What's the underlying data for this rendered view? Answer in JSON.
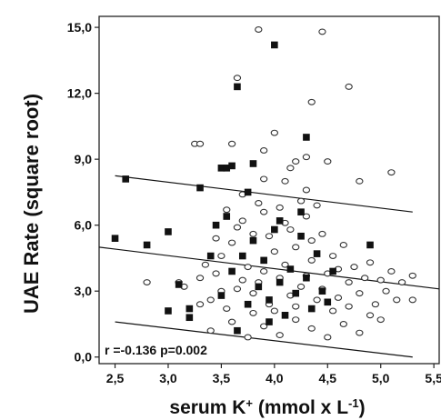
{
  "chart_data": {
    "type": "scatter",
    "title": "",
    "xlabel": "serum K",
    "xlabel_sup_plus": "+",
    "xlabel_unit": " (mmol x L",
    "xlabel_sup_exp": "-1",
    "xlabel_close": ")",
    "ylabel": "UAE Rate (square root)",
    "xlim": [
      2.35,
      5.55
    ],
    "ylim": [
      -0.3,
      15.5
    ],
    "x_ticks": [
      2.5,
      3.0,
      3.5,
      4.0,
      4.5,
      5.0,
      5.5
    ],
    "x_tick_labels": [
      "2,5",
      "3,0",
      "3,5",
      "4,0",
      "4,5",
      "5,0",
      "5,5"
    ],
    "y_ticks": [
      0,
      3,
      6,
      9,
      12,
      15
    ],
    "y_tick_labels": [
      "0,0",
      "3,0",
      "6,0",
      "9,0",
      "12,0",
      "15,0"
    ],
    "grid": false,
    "annotation": "r =-0.136 p=0.002",
    "series": [
      {
        "marker": "open-circle",
        "color": "#333333",
        "points": [
          [
            3.85,
            14.9
          ],
          [
            4.45,
            14.8
          ],
          [
            3.65,
            12.7
          ],
          [
            4.7,
            12.3
          ],
          [
            4.35,
            11.6
          ],
          [
            3.6,
            9.7
          ],
          [
            3.9,
            9.4
          ],
          [
            3.25,
            9.7
          ],
          [
            3.3,
            9.7
          ],
          [
            4.0,
            10.2
          ],
          [
            4.15,
            8.6
          ],
          [
            4.2,
            8.9
          ],
          [
            4.3,
            9.1
          ],
          [
            4.5,
            8.9
          ],
          [
            5.1,
            8.4
          ],
          [
            3.9,
            8.1
          ],
          [
            4.1,
            8.0
          ],
          [
            4.8,
            8.0
          ],
          [
            4.3,
            7.6
          ],
          [
            3.7,
            7.4
          ],
          [
            2.8,
            3.4
          ],
          [
            3.1,
            3.4
          ],
          [
            3.15,
            3.2
          ],
          [
            3.3,
            3.6
          ],
          [
            3.35,
            4.2
          ],
          [
            3.4,
            2.6
          ],
          [
            3.45,
            3.8
          ],
          [
            3.5,
            4.6
          ],
          [
            3.55,
            2.2
          ],
          [
            3.6,
            5.2
          ],
          [
            3.65,
            3.1
          ],
          [
            3.7,
            6.2
          ],
          [
            3.75,
            4.1
          ],
          [
            3.8,
            2.9
          ],
          [
            3.8,
            5.6
          ],
          [
            3.85,
            3.4
          ],
          [
            3.9,
            6.6
          ],
          [
            3.95,
            2.4
          ],
          [
            4.0,
            4.8
          ],
          [
            4.05,
            3.6
          ],
          [
            4.1,
            6.1
          ],
          [
            4.15,
            2.8
          ],
          [
            4.2,
            5.0
          ],
          [
            4.25,
            3.2
          ],
          [
            4.3,
            6.4
          ],
          [
            4.35,
            4.4
          ],
          [
            4.4,
            2.6
          ],
          [
            4.45,
            5.6
          ],
          [
            4.5,
            3.8
          ],
          [
            4.55,
            4.6
          ],
          [
            4.6,
            2.7
          ],
          [
            4.65,
            5.1
          ],
          [
            4.7,
            3.4
          ],
          [
            4.75,
            4.1
          ],
          [
            4.8,
            2.9
          ],
          [
            4.85,
            3.6
          ],
          [
            4.9,
            4.3
          ],
          [
            4.95,
            2.4
          ],
          [
            5.0,
            3.5
          ],
          [
            5.05,
            3.0
          ],
          [
            5.1,
            3.9
          ],
          [
            5.15,
            2.6
          ],
          [
            5.2,
            3.4
          ],
          [
            5.3,
            3.7
          ],
          [
            5.3,
            2.6
          ],
          [
            3.4,
            1.2
          ],
          [
            3.6,
            1.6
          ],
          [
            3.75,
            0.9
          ],
          [
            3.9,
            1.4
          ],
          [
            4.05,
            1.0
          ],
          [
            4.2,
            1.7
          ],
          [
            4.35,
            1.3
          ],
          [
            4.5,
            0.9
          ],
          [
            4.65,
            1.5
          ],
          [
            4.8,
            1.1
          ],
          [
            3.55,
            6.7
          ],
          [
            3.85,
            7.0
          ],
          [
            4.05,
            6.8
          ],
          [
            4.25,
            7.1
          ],
          [
            4.4,
            6.9
          ],
          [
            3.45,
            5.4
          ],
          [
            3.65,
            5.9
          ],
          [
            3.95,
            5.5
          ],
          [
            4.15,
            5.8
          ],
          [
            4.35,
            5.3
          ],
          [
            3.5,
            3.0
          ],
          [
            3.7,
            3.5
          ],
          [
            3.9,
            3.9
          ],
          [
            4.1,
            4.2
          ],
          [
            4.3,
            3.7
          ],
          [
            4.45,
            3.1
          ],
          [
            4.6,
            4.0
          ],
          [
            4.0,
            2.1
          ],
          [
            4.2,
            2.3
          ],
          [
            3.8,
            2.0
          ],
          [
            4.55,
            2.1
          ],
          [
            4.7,
            2.3
          ],
          [
            4.9,
            1.9
          ],
          [
            3.3,
            2.4
          ],
          [
            5.0,
            1.7
          ]
        ]
      },
      {
        "marker": "filled-square",
        "color": "#111111",
        "points": [
          [
            2.5,
            5.4
          ],
          [
            2.6,
            8.1
          ],
          [
            2.8,
            5.1
          ],
          [
            3.0,
            5.7
          ],
          [
            3.0,
            2.1
          ],
          [
            3.2,
            2.2
          ],
          [
            3.2,
            1.8
          ],
          [
            3.3,
            7.7
          ],
          [
            3.5,
            8.6
          ],
          [
            3.55,
            8.6
          ],
          [
            3.6,
            8.7
          ],
          [
            3.65,
            12.3
          ],
          [
            3.8,
            8.8
          ],
          [
            4.0,
            14.2
          ],
          [
            4.3,
            10.0
          ],
          [
            4.9,
            5.1
          ],
          [
            3.1,
            3.3
          ],
          [
            3.4,
            4.6
          ],
          [
            3.45,
            6.0
          ],
          [
            3.5,
            2.8
          ],
          [
            3.6,
            3.9
          ],
          [
            3.65,
            1.2
          ],
          [
            3.7,
            4.6
          ],
          [
            3.75,
            2.4
          ],
          [
            3.8,
            5.3
          ],
          [
            3.85,
            3.2
          ],
          [
            3.9,
            4.4
          ],
          [
            3.95,
            2.6
          ],
          [
            4.0,
            5.8
          ],
          [
            4.05,
            3.4
          ],
          [
            4.1,
            1.9
          ],
          [
            4.15,
            4.0
          ],
          [
            4.2,
            2.9
          ],
          [
            4.25,
            5.5
          ],
          [
            4.3,
            3.6
          ],
          [
            4.35,
            2.2
          ],
          [
            4.4,
            4.7
          ],
          [
            4.45,
            3.0
          ],
          [
            4.5,
            2.5
          ],
          [
            4.55,
            3.9
          ],
          [
            3.55,
            6.4
          ],
          [
            3.75,
            7.5
          ],
          [
            4.05,
            6.2
          ],
          [
            4.25,
            6.6
          ],
          [
            3.95,
            1.6
          ]
        ]
      }
    ],
    "lines": [
      {
        "name": "upper",
        "x": [
          2.5,
          5.3
        ],
        "y": [
          8.25,
          6.6
        ]
      },
      {
        "name": "regression",
        "x": [
          2.35,
          5.55
        ],
        "y": [
          5.0,
          3.1
        ]
      },
      {
        "name": "lower",
        "x": [
          2.5,
          5.3
        ],
        "y": [
          1.6,
          0.0
        ]
      }
    ]
  }
}
